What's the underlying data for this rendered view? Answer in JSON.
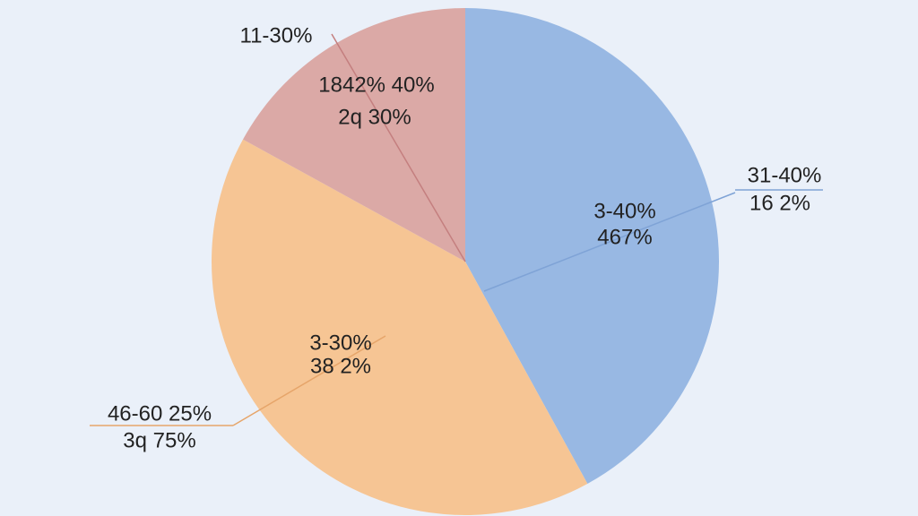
{
  "chart_data": {
    "type": "pie",
    "values": [
      42,
      41,
      17
    ],
    "colors": [
      "#98b8e3",
      "#f6c594",
      "#dba9a6"
    ],
    "slice_labels": [
      {
        "inside": [
          "3-40%",
          "467%"
        ],
        "outside": [
          "31-40%",
          "16  2%"
        ]
      },
      {
        "inside": [
          "3-30%",
          "38  2%"
        ],
        "outside": [
          "46-60 25%",
          "3q 75%"
        ]
      },
      {
        "inside": [
          "1842% 40%",
          "2q 30%"
        ],
        "outside": [
          "11-30%"
        ]
      }
    ]
  }
}
